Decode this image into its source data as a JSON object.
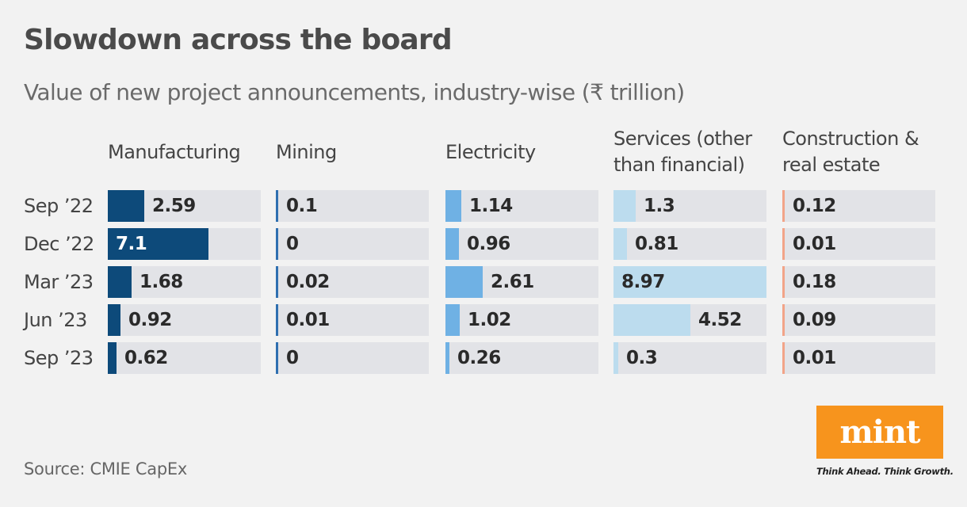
{
  "title": "Slowdown across the board",
  "subtitle": "Value of new project announcements, industry-wise (₹ trillion)",
  "source": "Source: CMIE CapEx",
  "logo": {
    "text": "mint",
    "tagline": "Think Ahead. Think Growth.",
    "color": "#f7941d"
  },
  "chart_data": {
    "type": "table",
    "title": "Slowdown across the board",
    "subtitle": "Value of new project announcements, industry-wise (₹ trillion)",
    "rows": [
      "Sep ’22",
      "Dec ’22",
      "Mar ’23",
      "Jun ’23",
      "Sep ’23"
    ],
    "series": [
      {
        "name": "Manufacturing",
        "color": "#0d4a7a",
        "max": 10.8,
        "values": [
          2.59,
          7.1,
          1.68,
          0.92,
          0.62
        ],
        "labels": [
          "2.59",
          "7.1",
          "1.68",
          "0.92",
          "0.62"
        ]
      },
      {
        "name": "Mining",
        "color": "#2f6fb0",
        "max": 10.8,
        "values": [
          0.1,
          0,
          0.02,
          0.01,
          0
        ],
        "labels": [
          "0.1",
          "0",
          "0.02",
          "0.01",
          "0"
        ]
      },
      {
        "name": "Electricity",
        "color": "#6fb1e4",
        "max": 10.8,
        "values": [
          1.14,
          0.96,
          2.61,
          1.02,
          0.26
        ],
        "labels": [
          "1.14",
          "0.96",
          "2.61",
          "1.02",
          "0.26"
        ]
      },
      {
        "name": "Services (other than financial)",
        "color": "#bcdcee",
        "max": 8.97,
        "values": [
          1.3,
          0.81,
          8.97,
          4.52,
          0.3
        ],
        "labels": [
          "1.3",
          "0.81",
          "8.97",
          "4.52",
          "0.3"
        ]
      },
      {
        "name": "Construction & real estate",
        "color": "#f2a488",
        "max": 10.8,
        "values": [
          0.12,
          0.01,
          0.18,
          0.09,
          0.01
        ],
        "labels": [
          "0.12",
          "0.01",
          "0.18",
          "0.09",
          "0.01"
        ]
      }
    ]
  }
}
